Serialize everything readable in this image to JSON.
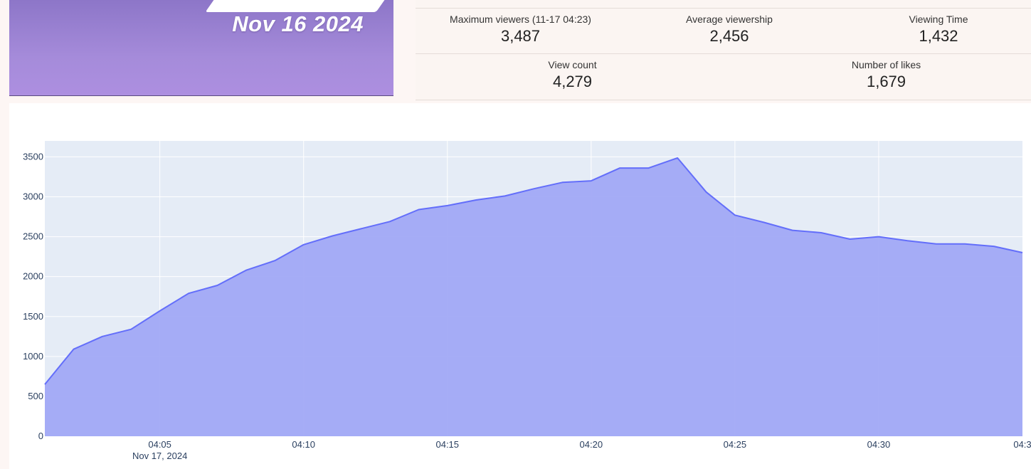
{
  "banner": {
    "date_text": "Nov 16 2024"
  },
  "stats": {
    "max_viewers": {
      "label": "Maximum viewers (11-17 04:23)",
      "value": "3,487"
    },
    "avg_viewership": {
      "label": "Average viewership",
      "value": "2,456"
    },
    "viewing_time": {
      "label": "Viewing Time",
      "value": "1,432"
    },
    "view_count": {
      "label": "View count",
      "value": "4,279"
    },
    "likes": {
      "label": "Number of likes",
      "value": "1,679"
    }
  },
  "colors": {
    "banner_top": "#8d76c8",
    "banner_bottom": "#ad8fe0",
    "plot_bg": "#e5ecf6",
    "fill": "#a1a9f5",
    "line": "#636efa"
  },
  "chart_data": {
    "type": "area",
    "title": "",
    "xlabel": "",
    "ylabel": "",
    "x": [
      "04:01",
      "04:02",
      "04:03",
      "04:04",
      "04:05",
      "04:06",
      "04:07",
      "04:08",
      "04:09",
      "04:10",
      "04:11",
      "04:12",
      "04:13",
      "04:14",
      "04:15",
      "04:16",
      "04:17",
      "04:18",
      "04:19",
      "04:20",
      "04:21",
      "04:22",
      "04:23",
      "04:24",
      "04:25",
      "04:26",
      "04:27",
      "04:28",
      "04:29",
      "04:30",
      "04:31",
      "04:32",
      "04:33",
      "04:34",
      "04:35"
    ],
    "values": [
      650,
      1090,
      1250,
      1340,
      1570,
      1790,
      1890,
      2080,
      2200,
      2400,
      2510,
      2600,
      2690,
      2840,
      2890,
      2960,
      3010,
      3100,
      3180,
      3200,
      3360,
      3360,
      3487,
      3060,
      2770,
      2680,
      2580,
      2550,
      2470,
      2500,
      2450,
      2410,
      2410,
      2380,
      2300
    ],
    "ylim": [
      0,
      3700
    ],
    "yticks": [
      0,
      500,
      1000,
      1500,
      2000,
      2500,
      3000,
      3500
    ],
    "xticks": [
      "04:05",
      "04:10",
      "04:15",
      "04:20",
      "04:25",
      "04:30",
      "04:3"
    ],
    "x_date_label": "Nov 17, 2024",
    "grid": true,
    "legend": "none"
  }
}
